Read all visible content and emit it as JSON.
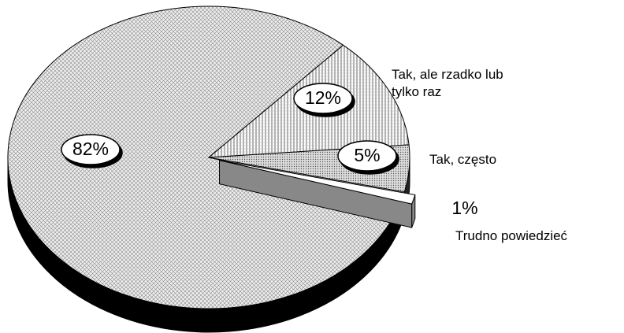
{
  "chart_data": {
    "type": "pie",
    "categories": [
      null,
      "Tak, ale rzadko lub tylko raz",
      "Tak, często",
      "Trudno powiedzieć"
    ],
    "values": [
      82,
      12,
      5,
      1
    ],
    "value_labels": [
      "82%",
      "12%",
      "5%",
      "1%"
    ]
  }
}
